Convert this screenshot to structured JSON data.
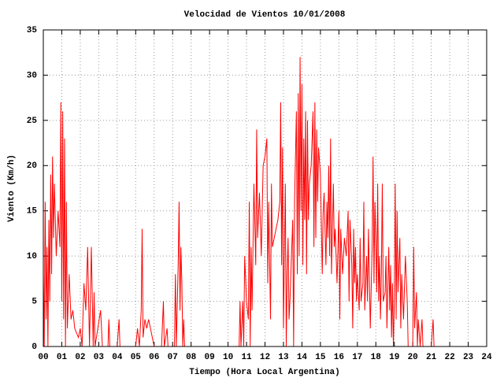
{
  "chart_data": {
    "type": "line",
    "title": "Velocidad de Vientos 10/01/2008",
    "x_label": "Tiempo (Hora Local Argentina)",
    "y_label": "Viento (Km/h)",
    "color": "#ff0000",
    "grid": true,
    "xlim": [
      0,
      24
    ],
    "ylim": [
      0,
      35
    ],
    "xticks": [
      {
        "value": 0,
        "label": "00"
      },
      {
        "value": 1,
        "label": "01"
      },
      {
        "value": 2,
        "label": "02"
      },
      {
        "value": 3,
        "label": "03"
      },
      {
        "value": 4,
        "label": "04"
      },
      {
        "value": 5,
        "label": "05"
      },
      {
        "value": 6,
        "label": "06"
      },
      {
        "value": 7,
        "label": "07"
      },
      {
        "value": 8,
        "label": "08"
      },
      {
        "value": 9,
        "label": "09"
      },
      {
        "value": 10,
        "label": "10"
      },
      {
        "value": 11,
        "label": "11"
      },
      {
        "value": 12,
        "label": "12"
      },
      {
        "value": 13,
        "label": "13"
      },
      {
        "value": 14,
        "label": "14"
      },
      {
        "value": 15,
        "label": "15"
      },
      {
        "value": 16,
        "label": "16"
      },
      {
        "value": 17,
        "label": "17"
      },
      {
        "value": 18,
        "label": "18"
      },
      {
        "value": 19,
        "label": "19"
      },
      {
        "value": 20,
        "label": "20"
      },
      {
        "value": 21,
        "label": "21"
      },
      {
        "value": 22,
        "label": "22"
      },
      {
        "value": 23,
        "label": "23"
      },
      {
        "value": 24,
        "label": "24"
      }
    ],
    "yticks": [
      0,
      5,
      10,
      15,
      20,
      25,
      30,
      35
    ],
    "x": [
      0,
      0.05,
      0.1,
      0.15,
      0.2,
      0.25,
      0.3,
      0.35,
      0.4,
      0.45,
      0.5,
      0.55,
      0.6,
      0.7,
      0.8,
      0.9,
      0.95,
      1,
      1.05,
      1.1,
      1.15,
      1.2,
      1.25,
      1.3,
      1.4,
      1.5,
      1.6,
      1.7,
      1.9,
      2,
      2.1,
      2.2,
      2.3,
      2.4,
      2.5,
      2.6,
      2.7,
      2.75,
      2.8,
      3.1,
      3.2,
      3.5,
      3.55,
      3.6,
      4,
      4.1,
      4.15,
      5,
      5.1,
      5.2,
      5.3,
      5.35,
      5.4,
      5.5,
      5.6,
      5.7,
      6,
      6.4,
      6.5,
      6.55,
      6.7,
      6.75,
      7.1,
      7.15,
      7.2,
      7.3,
      7.35,
      7.4,
      7.45,
      7.5,
      7.55,
      7.6,
      7.65,
      10.6,
      10.65,
      10.7,
      10.8,
      10.85,
      10.9,
      11,
      11.1,
      11.15,
      11.2,
      11.25,
      11.3,
      11.4,
      11.5,
      11.55,
      11.6,
      11.7,
      11.8,
      11.9,
      12,
      12.1,
      12.15,
      12.2,
      12.3,
      12.35,
      12.4,
      12.5,
      12.7,
      12.8,
      12.85,
      12.9,
      12.95,
      13,
      13.1,
      13.15,
      13.2,
      13.25,
      13.3,
      13.35,
      13.5,
      13.55,
      13.6,
      13.7,
      13.75,
      13.8,
      13.85,
      13.9,
      13.95,
      14,
      14.05,
      14.1,
      14.15,
      14.2,
      14.25,
      14.3,
      14.35,
      14.4,
      14.5,
      14.6,
      14.65,
      14.7,
      14.75,
      14.8,
      14.85,
      14.9,
      15,
      15.1,
      15.15,
      15.2,
      15.3,
      15.35,
      15.4,
      15.45,
      15.5,
      15.55,
      15.6,
      15.7,
      15.75,
      15.8,
      15.9,
      16,
      16.05,
      16.1,
      16.2,
      16.3,
      16.4,
      16.5,
      16.55,
      16.6,
      16.7,
      16.75,
      16.8,
      16.85,
      16.9,
      16.95,
      17,
      17.1,
      17.15,
      17.2,
      17.3,
      17.35,
      17.4,
      17.5,
      17.55,
      17.6,
      17.7,
      17.8,
      17.85,
      17.9,
      17.95,
      18,
      18.05,
      18.1,
      18.15,
      18.2,
      18.25,
      18.3,
      18.35,
      18.4,
      18.5,
      18.55,
      18.6,
      18.7,
      18.75,
      18.8,
      18.85,
      18.9,
      18.95,
      19,
      19.05,
      19.1,
      19.15,
      19.2,
      19.3,
      19.35,
      19.4,
      19.5,
      19.6,
      19.7,
      19.75,
      20,
      20.05,
      20.1,
      20.2,
      20.25,
      20.3,
      20.4,
      20.5,
      20.55,
      21,
      21.1,
      21.15
    ],
    "values": [
      8,
      0,
      16,
      3,
      11,
      0,
      14,
      5,
      19,
      8,
      21,
      12,
      18,
      10,
      15,
      11,
      27,
      5,
      26,
      3,
      23,
      0,
      16,
      2,
      8,
      3,
      4,
      2,
      1,
      2,
      0,
      7,
      4,
      11,
      0,
      11,
      0,
      6,
      0,
      4,
      0,
      0,
      3,
      0,
      0,
      3,
      0,
      0,
      2,
      0,
      4,
      13,
      1,
      3,
      2,
      3,
      0,
      0,
      5,
      0,
      2,
      0,
      0,
      8,
      0,
      9,
      16,
      4,
      11,
      7,
      0,
      3,
      0,
      0,
      5,
      0,
      5,
      0,
      10,
      5,
      3,
      16,
      0,
      11,
      4,
      18,
      9,
      24,
      12,
      17,
      10,
      20,
      21,
      23,
      7,
      16,
      3,
      18,
      11,
      12,
      14,
      16,
      27,
      9,
      22,
      2,
      18,
      0,
      8,
      12,
      3,
      5,
      14,
      0,
      16,
      26,
      8,
      28,
      10,
      32,
      15,
      29,
      9,
      23,
      14,
      26,
      8,
      25,
      14,
      18,
      20,
      26,
      11,
      27,
      12,
      24,
      16,
      22,
      19,
      8,
      15,
      17,
      9,
      16,
      12,
      20,
      10,
      23,
      8,
      18,
      11,
      13,
      7,
      15,
      3,
      13,
      8,
      12,
      10,
      15,
      5,
      14,
      9,
      2,
      13,
      7,
      11,
      5,
      8,
      4,
      12,
      5,
      7,
      16,
      4,
      10,
      5,
      13,
      2,
      11,
      21,
      7,
      16,
      12,
      6,
      18,
      5,
      10,
      3,
      8,
      18,
      5,
      6,
      10,
      2,
      11,
      4,
      9,
      1,
      7,
      0,
      5,
      18,
      3,
      15,
      6,
      12,
      2,
      8,
      3,
      10,
      5,
      0,
      0,
      11,
      2,
      6,
      0,
      3,
      0,
      3,
      0,
      0,
      3,
      0
    ]
  }
}
